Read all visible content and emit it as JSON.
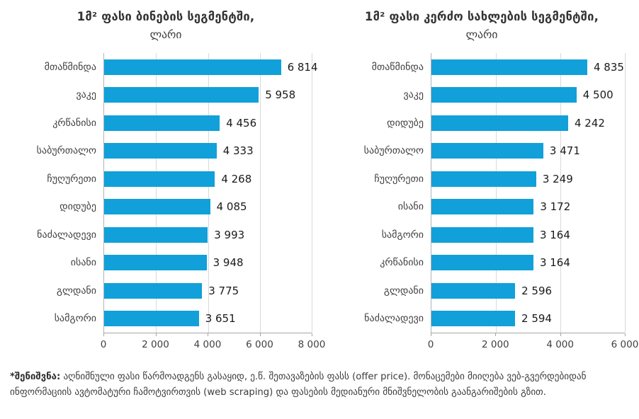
{
  "colors": {
    "bar": "#11a0d9",
    "gridline": "#d9d9d9",
    "axis_line": "#a6a6a6",
    "text": "#404040"
  },
  "note": {
    "label": "*შენიშვნა:",
    "text": "აღნიშნული ფასი წარმოადგენს გასაყიდ, ე.წ. შეთავაზების ფასს (offer price). მონაცემები მიიღება ვებ-გვერდებიდან ინფორმაციის ავტომატური ჩამოტვირთვის (web scraping) და ფასების მედიანური მნიშვნელობის გაანგარიშების გზით."
  },
  "chart_data": [
    {
      "type": "bar",
      "orientation": "horizontal",
      "title": "1მ² ფასი ბინების სეგმენტში,",
      "subtitle": "ლარი",
      "categories": [
        "მთაწმინდა",
        "ვაკე",
        "კრწანისი",
        "საბურთალო",
        "ჩუღურეთი",
        "დიდუბე",
        "ნაძალადევი",
        "ისანი",
        "გლდანი",
        "სამგორი"
      ],
      "values": [
        6814,
        5958,
        4456,
        4333,
        4268,
        4085,
        3993,
        3948,
        3775,
        3651
      ],
      "value_labels": [
        "6 814",
        "5 958",
        "4 456",
        "4 333",
        "4 268",
        "4 085",
        "3 993",
        "3 948",
        "3 775",
        "3 651"
      ],
      "xlim": [
        0,
        8000
      ],
      "xticks": [
        0,
        2000,
        4000,
        6000,
        8000
      ],
      "xtick_labels": [
        "0",
        "2 000",
        "4 000",
        "6 000",
        "8 000"
      ],
      "grid": true,
      "legend": false
    },
    {
      "type": "bar",
      "orientation": "horizontal",
      "title": "1მ² ფასი კერძო სახლების სეგმენტში,",
      "subtitle": "ლარი",
      "categories": [
        "მთაწმინდა",
        "ვაკე",
        "დიდუბე",
        "საბურთალო",
        "ჩუღურეთი",
        "ისანი",
        "სამგორი",
        "კრწანისი",
        "გლდანი",
        "ნაძალადევი"
      ],
      "values": [
        4835,
        4500,
        4242,
        3471,
        3249,
        3172,
        3164,
        3164,
        2596,
        2594
      ],
      "value_labels": [
        "4 835",
        "4 500",
        "4 242",
        "3 471",
        "3 249",
        "3 172",
        "3 164",
        "3 164",
        "2 596",
        "2 594"
      ],
      "xlim": [
        0,
        6000
      ],
      "xticks": [
        0,
        2000,
        4000,
        6000
      ],
      "xtick_labels": [
        "0",
        "2 000",
        "4 000",
        "6 000"
      ],
      "grid": true,
      "legend": false
    }
  ]
}
